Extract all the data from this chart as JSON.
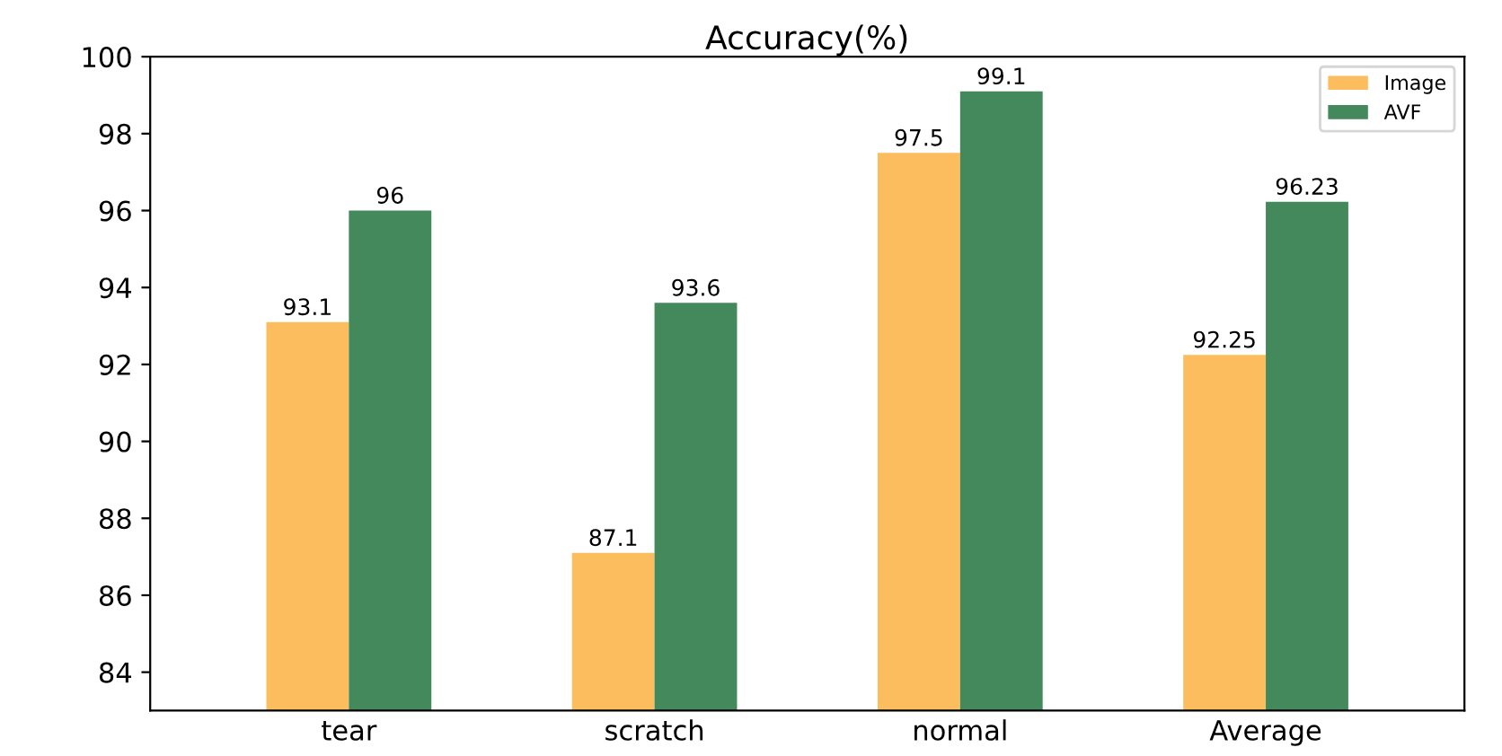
{
  "chart_data": {
    "type": "bar",
    "title": "Accuracy(%)",
    "categories": [
      "tear",
      "scratch",
      "normal",
      "Average"
    ],
    "series": [
      {
        "name": "Image",
        "color": "#fcbd5e",
        "values": [
          93.1,
          87.1,
          97.5,
          92.25
        ]
      },
      {
        "name": "AVF",
        "color": "#43895c",
        "values": [
          96,
          93.6,
          99.1,
          96.23
        ]
      }
    ],
    "ylim": [
      83,
      100
    ],
    "yticks": [
      84,
      86,
      88,
      90,
      92,
      94,
      96,
      98,
      100
    ],
    "data_labels": true,
    "legend": "top right",
    "grid": false
  }
}
